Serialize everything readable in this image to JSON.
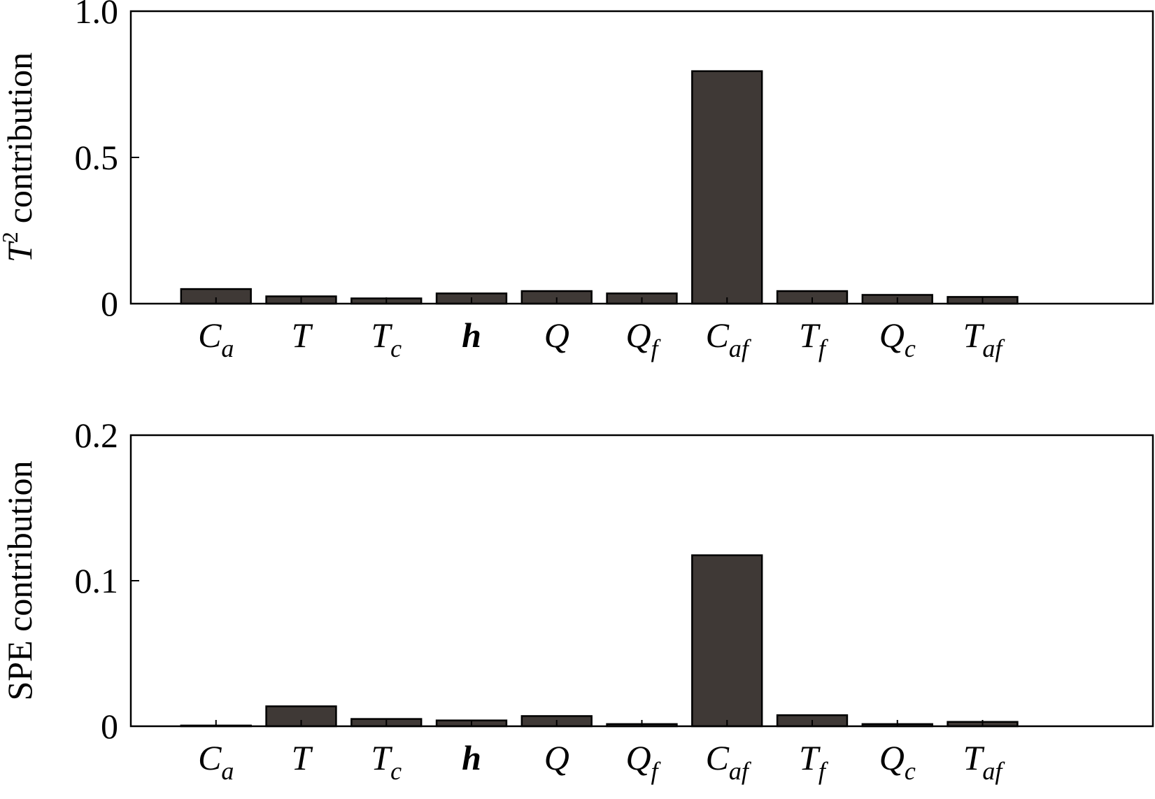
{
  "chart_data": [
    {
      "type": "bar",
      "ylabel": {
        "symbol": "T",
        "sup": "2",
        "text": "contribution"
      },
      "x": [
        1,
        2,
        3,
        4,
        5,
        6,
        7,
        8,
        9,
        10
      ],
      "categories": [
        [
          "C",
          "a"
        ],
        [
          "T",
          ""
        ],
        [
          "T",
          "c"
        ],
        [
          "h",
          ""
        ],
        [
          "Q",
          ""
        ],
        [
          "Q",
          "f"
        ],
        [
          "C",
          "af"
        ],
        [
          "T",
          "f"
        ],
        [
          "Q",
          "c"
        ],
        [
          "T",
          "af"
        ]
      ],
      "values": [
        0.05,
        0.025,
        0.018,
        0.035,
        0.043,
        0.035,
        0.795,
        0.043,
        0.03,
        0.023
      ],
      "color": "#3f3936",
      "xlim": [
        0,
        12
      ],
      "ylim": [
        0,
        1
      ],
      "yticks": [
        0,
        0.5,
        {
          "value": 1,
          "label": "1.0"
        }
      ]
    },
    {
      "type": "bar",
      "ylabel": {
        "text": "SPE contribution"
      },
      "x": [
        1,
        2,
        3,
        4,
        5,
        6,
        7,
        8,
        9,
        10
      ],
      "categories": [
        [
          "C",
          "a"
        ],
        [
          "T",
          ""
        ],
        [
          "T",
          "c"
        ],
        [
          "h",
          ""
        ],
        [
          "Q",
          ""
        ],
        [
          "Q",
          "f"
        ],
        [
          "C",
          "af"
        ],
        [
          "T",
          "f"
        ],
        [
          "Q",
          "c"
        ],
        [
          "T",
          "af"
        ]
      ],
      "values": [
        0.0005,
        0.0137,
        0.005,
        0.004,
        0.007,
        0.0015,
        0.1175,
        0.0076,
        0.0015,
        0.003
      ],
      "color": "#3f3936",
      "xlim": [
        0,
        12
      ],
      "ylim": [
        0,
        0.2
      ],
      "yticks": [
        0,
        0.1,
        0.2
      ]
    }
  ]
}
